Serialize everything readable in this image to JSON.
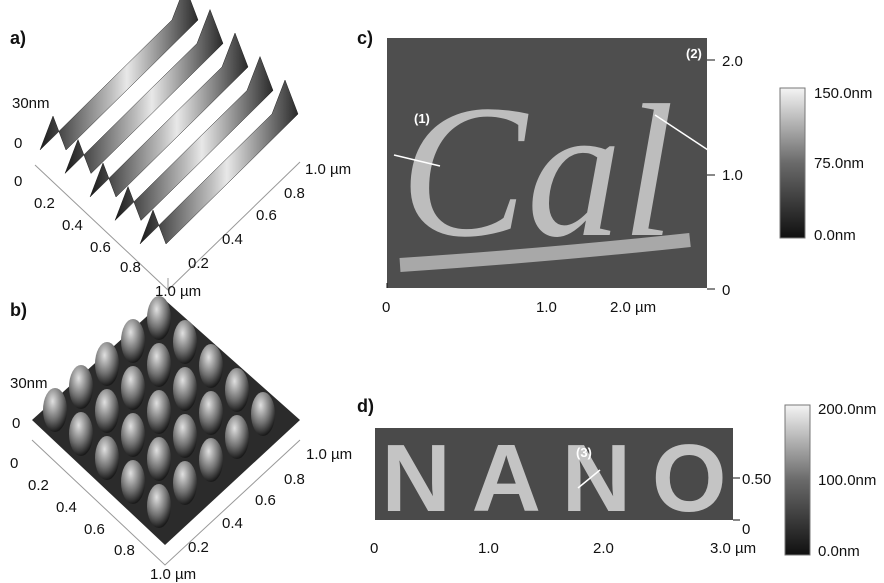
{
  "panels": {
    "a": {
      "label": "a)",
      "z_label": "30nm",
      "z_zero": "0",
      "left_ticks": [
        "0",
        "0.2",
        "0.4",
        "0.6",
        "0.8",
        "1.0 µm"
      ],
      "right_ticks": [
        "0.2",
        "0.4",
        "0.6",
        "0.8",
        "1.0 µm"
      ]
    },
    "b": {
      "label": "b)",
      "z_label": "30nm",
      "z_zero": "0",
      "left_ticks": [
        "0",
        "0.2",
        "0.4",
        "0.6",
        "0.8",
        "1.0 µm"
      ],
      "right_ticks": [
        "0.2",
        "0.4",
        "0.6",
        "0.8",
        "1.0 µm"
      ]
    },
    "c": {
      "label": "c)",
      "pattern": "Cal",
      "annotations": [
        "(1)",
        "(2)"
      ],
      "x_ticks": [
        "0",
        "1.0",
        "2.0 µm"
      ],
      "y_ticks": [
        "0",
        "1.0",
        "2.0"
      ],
      "colorbar": [
        "150.0nm",
        "75.0nm",
        "0.0nm"
      ]
    },
    "d": {
      "label": "d)",
      "pattern": "NANO",
      "annotations": [
        "(3)"
      ],
      "x_ticks": [
        "0",
        "1.0",
        "2.0",
        "3.0 µm"
      ],
      "y_ticks": [
        "0",
        "0.50"
      ],
      "colorbar": [
        "200.0nm",
        "100.0nm",
        "0.0nm"
      ]
    }
  }
}
